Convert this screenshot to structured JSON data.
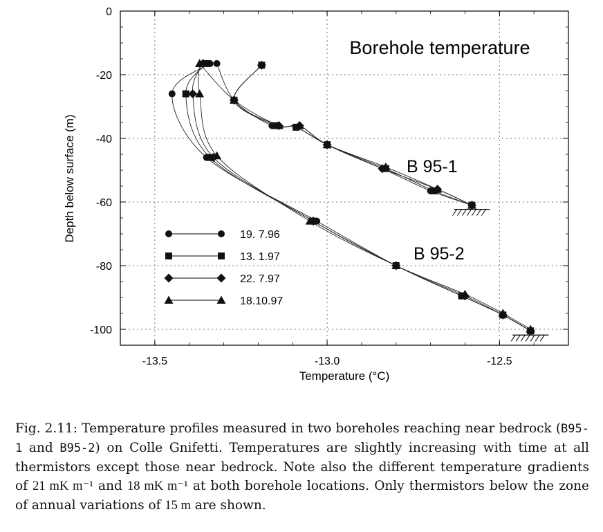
{
  "chart_data": {
    "type": "line",
    "title": "Borehole temperature",
    "xlabel": "Temperature (°C)",
    "ylabel": "Depth below surface (m)",
    "xlim": [
      -13.6,
      -12.3
    ],
    "ylim": [
      -105,
      0
    ],
    "x_ticks": [
      -13.5,
      -13.0,
      -12.5
    ],
    "x_tick_labels": [
      "-13.5",
      "-13.0",
      "-12.5"
    ],
    "y_ticks": [
      0,
      -20,
      -40,
      -60,
      -80,
      -100
    ],
    "y_tick_labels": [
      "0",
      "-20",
      "-40",
      "-60",
      "-80",
      "-100"
    ],
    "grid": true,
    "legend_position": "center-left",
    "annotations": [
      "B 95-1",
      "B 95-2"
    ],
    "boreholes": [
      {
        "label": "B 95-1",
        "series": [
          {
            "name": "19. 7.96",
            "marker": "circle",
            "points": [
              [
                -13.32,
                -16.5
              ],
              [
                -13.27,
                -28
              ],
              [
                -13.16,
                -36
              ],
              [
                -13.09,
                -36.5
              ],
              [
                -13.0,
                -42
              ],
              [
                -12.84,
                -49.5
              ],
              [
                -12.7,
                -56.5
              ],
              [
                -12.58,
                -61
              ]
            ]
          },
          {
            "name": "13. 1.97",
            "marker": "square",
            "points": [
              [
                -13.19,
                -17
              ],
              [
                -13.27,
                -28
              ],
              [
                -13.15,
                -36
              ],
              [
                -13.09,
                -36.5
              ],
              [
                -13.0,
                -42
              ],
              [
                -12.83,
                -49.5
              ],
              [
                -12.69,
                -56.5
              ],
              [
                -12.58,
                -61
              ]
            ]
          },
          {
            "name": "22. 7.97",
            "marker": "diamond",
            "points": [
              [
                -13.19,
                -17
              ],
              [
                -13.27,
                -28
              ],
              [
                -13.14,
                -36
              ],
              [
                -13.08,
                -36
              ],
              [
                -13.0,
                -42
              ],
              [
                -12.84,
                -49.5
              ],
              [
                -12.68,
                -56
              ],
              [
                -12.58,
                -61
              ]
            ]
          },
          {
            "name": "18.10.97",
            "marker": "triangle",
            "points": [
              [
                -13.37,
                -16.5
              ],
              [
                -13.27,
                -28
              ],
              [
                -13.14,
                -36
              ],
              [
                -13.08,
                -36
              ],
              [
                -13.0,
                -42
              ],
              [
                -12.83,
                -49
              ],
              [
                -12.68,
                -56
              ],
              [
                -12.58,
                -61
              ]
            ]
          }
        ]
      },
      {
        "label": "B 95-2",
        "series": [
          {
            "name": "19. 7.96",
            "marker": "circle",
            "points": [
              [
                -13.34,
                -16.5
              ],
              [
                -13.45,
                -26
              ],
              [
                -13.35,
                -46
              ],
              [
                -13.03,
                -66
              ],
              [
                -12.8,
                -80
              ],
              [
                -12.61,
                -89.5
              ],
              [
                -12.49,
                -95.5
              ],
              [
                -12.41,
                -100.5
              ]
            ]
          },
          {
            "name": "13. 1.97",
            "marker": "square",
            "points": [
              [
                -13.35,
                -16.5
              ],
              [
                -13.41,
                -26
              ],
              [
                -13.34,
                -46
              ],
              [
                -13.04,
                -66
              ],
              [
                -12.8,
                -80
              ],
              [
                -12.61,
                -89.5
              ],
              [
                -12.49,
                -95.5
              ],
              [
                -12.41,
                -100.5
              ]
            ]
          },
          {
            "name": "22. 7.97",
            "marker": "diamond",
            "points": [
              [
                -13.36,
                -16.5
              ],
              [
                -13.39,
                -26
              ],
              [
                -13.33,
                -46
              ],
              [
                -13.04,
                -66
              ],
              [
                -12.8,
                -80
              ],
              [
                -12.6,
                -89.5
              ],
              [
                -12.49,
                -95.5
              ],
              [
                -12.41,
                -100.5
              ]
            ]
          },
          {
            "name": "18.10.97",
            "marker": "triangle",
            "points": [
              [
                -13.37,
                -16.5
              ],
              [
                -13.37,
                -26
              ],
              [
                -13.32,
                -45.5
              ],
              [
                -13.05,
                -66
              ],
              [
                -12.8,
                -80
              ],
              [
                -12.6,
                -89
              ],
              [
                -12.49,
                -95
              ],
              [
                -12.41,
                -100
              ]
            ]
          }
        ]
      }
    ]
  },
  "caption": {
    "p1": "Fig. 2.11: Temperature profiles measured in two boreholes reaching near bedrock (",
    "code1": "B95-1",
    "p2": " and ",
    "code2": "B95-2",
    "p3": ") on Colle Gnifetti. Temperatures are slightly increasing with time at all thermistors except those near bedrock. Note also the different temperature gradients of ",
    "grad1": "21 mK m⁻¹",
    "p4": " and ",
    "grad2": "18 mK m⁻¹",
    "p5": " at both borehole locations. Only thermistors below the zone of annual variations of ",
    "depth": "15 m",
    "p6": " are shown."
  }
}
